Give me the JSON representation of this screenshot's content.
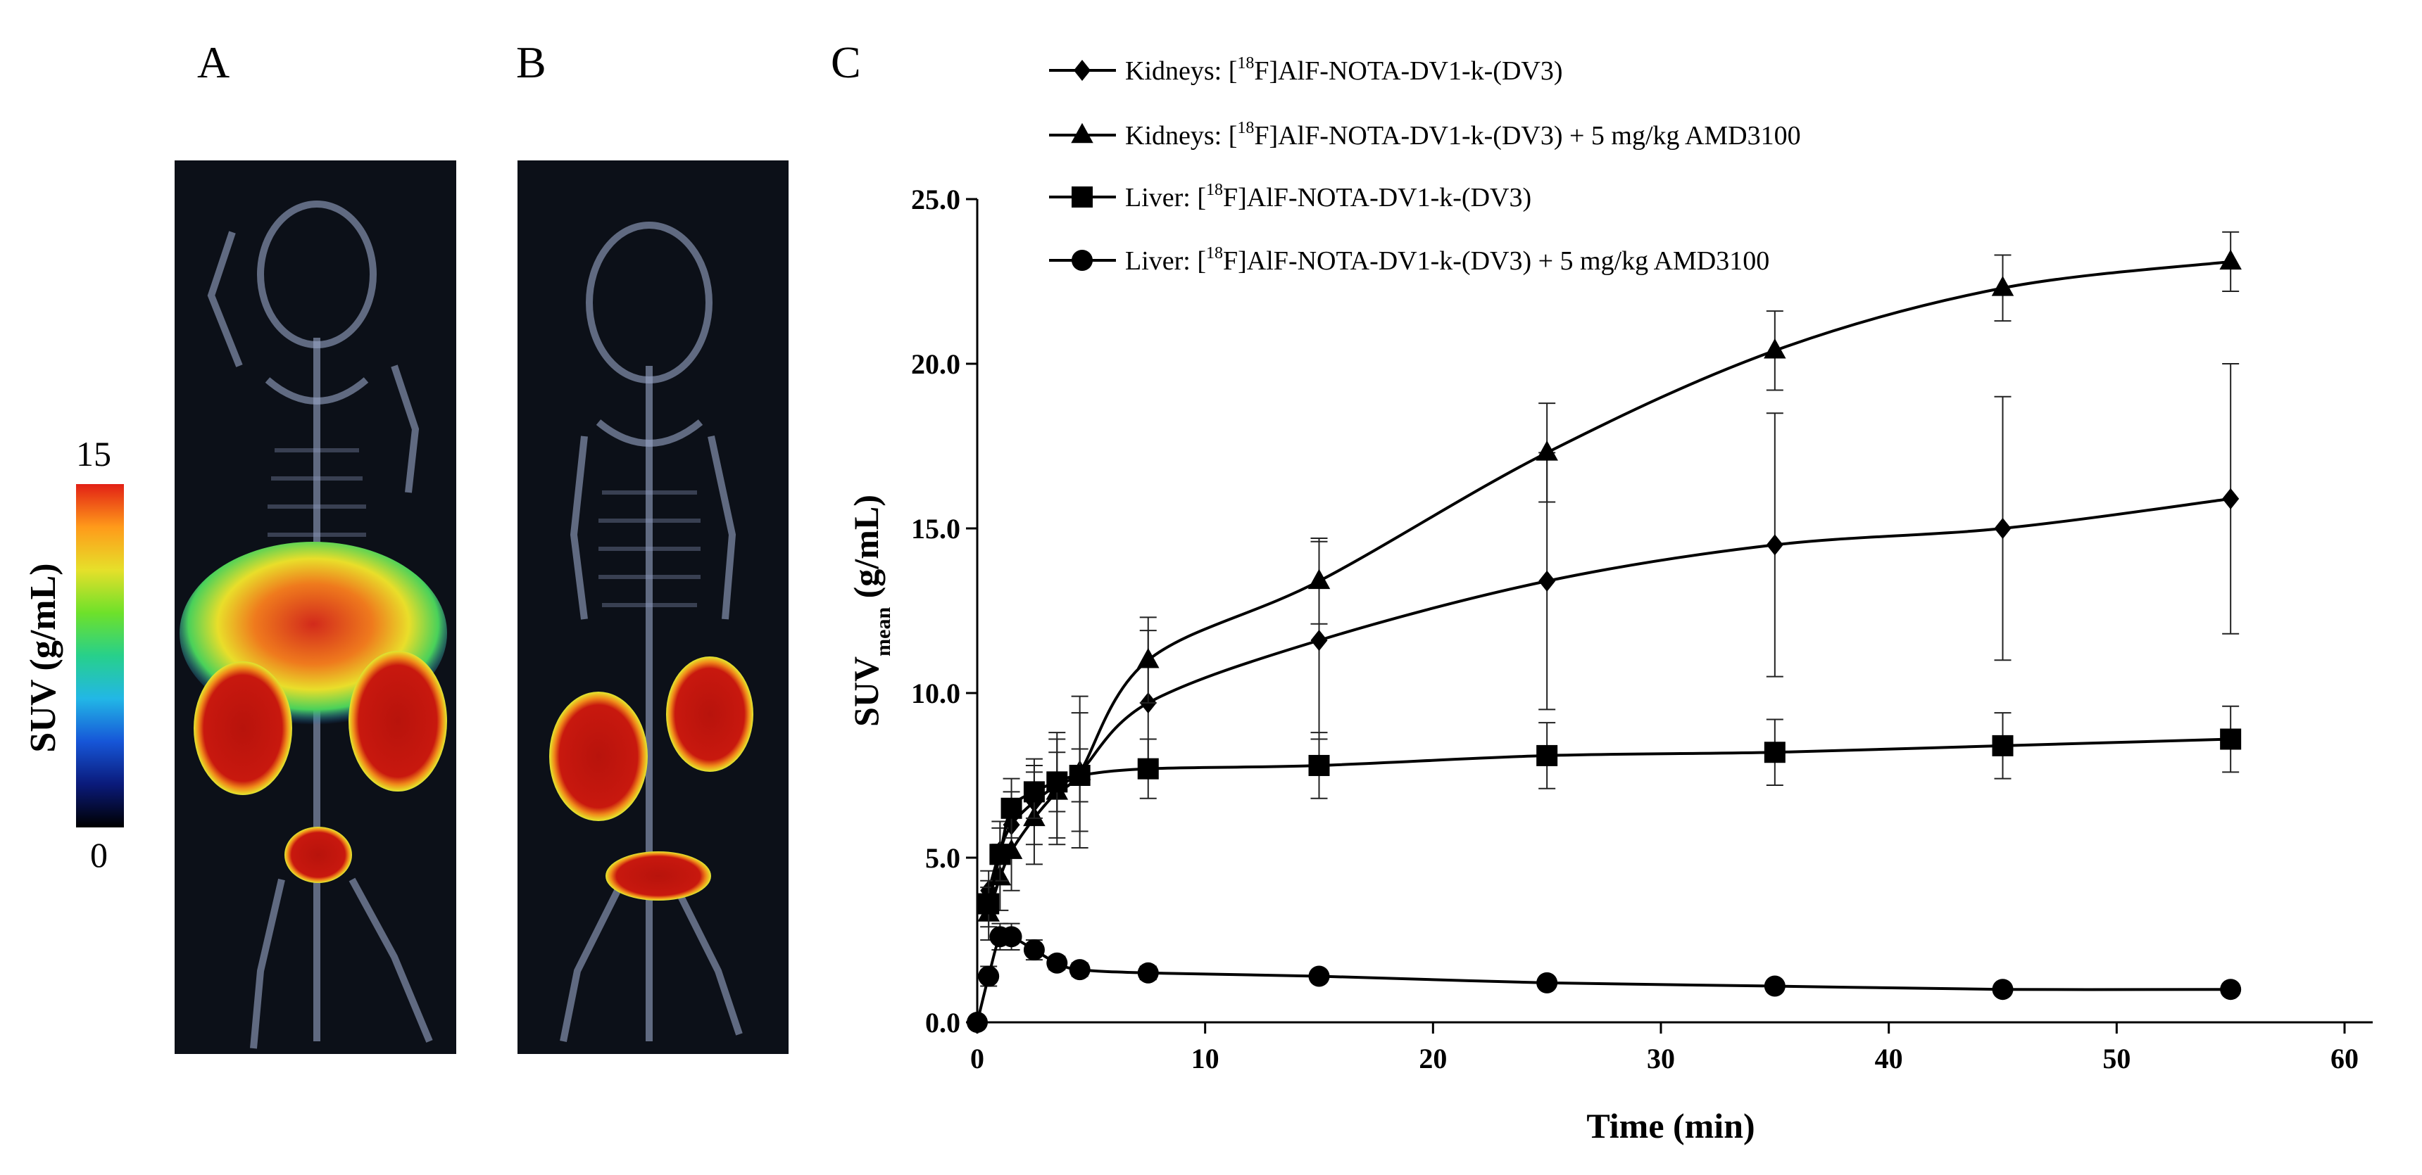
{
  "panels": {
    "a": "A",
    "b": "B",
    "c": "C"
  },
  "colorbar": {
    "max_label": "15",
    "min_label": "0",
    "title": "SUV (g/mL)",
    "colors": [
      "#000000",
      "#0a1a7a",
      "#1656d8",
      "#22b7e6",
      "#27d08b",
      "#6ee12a",
      "#e6e02a",
      "#ff9a1a",
      "#e22015"
    ]
  },
  "images": {
    "a": {
      "description": "PET/CT maximum intensity projection, mouse A"
    },
    "b": {
      "description": "PET/CT maximum intensity projection, mouse B"
    }
  },
  "chart_data": {
    "type": "line",
    "xlabel": "Time (min)",
    "ylabel": "SUV",
    "ylabel_sub": "mean",
    "ylabel_unit": " (g/mL)",
    "xlim": [
      0,
      60
    ],
    "ylim": [
      0,
      25
    ],
    "x_ticks": [
      "0",
      "10",
      "20",
      "30",
      "40",
      "50",
      "60"
    ],
    "y_ticks": [
      "0.0",
      "5.0",
      "10.0",
      "15.0",
      "20.0",
      "25.0"
    ],
    "grid": false,
    "legend_position": "top",
    "series": [
      {
        "id": "kidney",
        "marker": "diamond",
        "legend_prefix": "Kidneys: [",
        "legend_sup": "18",
        "legend_suffix": "F]AlF-NOTA-DV1-k-(DV3)",
        "x": [
          0.5,
          1.0,
          1.5,
          2.5,
          3.5,
          4.5,
          7.5,
          15,
          25,
          35,
          45,
          55
        ],
        "y": [
          4.0,
          5.2,
          6.0,
          6.7,
          7.2,
          7.6,
          9.7,
          11.6,
          13.4,
          14.5,
          15.0,
          15.9
        ],
        "error": [
          0.6,
          0.9,
          1.0,
          1.3,
          1.6,
          1.8,
          2.2,
          3.0,
          3.9,
          4.0,
          4.0,
          4.1
        ]
      },
      {
        "id": "kidney-amd",
        "marker": "triangle",
        "legend_prefix": "Kidneys: [",
        "legend_sup": "18",
        "legend_suffix": "F]AlF-NOTA-DV1-k-(DV3) + 5 mg/kg AMD3100",
        "x": [
          0.5,
          1.0,
          1.5,
          2.5,
          3.5,
          4.5,
          7.5,
          15,
          25,
          35,
          45,
          55
        ],
        "y": [
          3.3,
          4.4,
          5.2,
          6.2,
          7.0,
          7.6,
          11.0,
          13.4,
          17.3,
          20.4,
          22.3,
          23.1
        ],
        "error": [
          0.8,
          1.0,
          1.2,
          1.4,
          1.6,
          2.3,
          1.3,
          1.3,
          1.5,
          1.2,
          1.0,
          0.9
        ]
      },
      {
        "id": "liver",
        "marker": "square",
        "legend_prefix": "Liver:      [",
        "legend_sup": "18",
        "legend_suffix": "F]AlF-NOTA-DV1-k-(DV3)",
        "x": [
          0.5,
          1.0,
          1.5,
          2.5,
          3.5,
          4.5,
          7.5,
          15,
          25,
          35,
          45,
          55
        ],
        "y": [
          3.6,
          5.1,
          6.5,
          7.0,
          7.3,
          7.5,
          7.7,
          7.8,
          8.1,
          8.2,
          8.4,
          8.6
        ],
        "error": [
          0.7,
          0.8,
          0.9,
          0.8,
          0.9,
          0.8,
          0.9,
          1.0,
          1.0,
          1.0,
          1.0,
          1.0
        ]
      },
      {
        "id": "liver-amd",
        "marker": "circle",
        "legend_prefix": "Liver:      [",
        "legend_sup": "18",
        "legend_suffix": "F]AlF-NOTA-DV1-k-(DV3) + 5 mg/kg AMD3100",
        "x": [
          0,
          0.5,
          1.0,
          1.5,
          2.5,
          3.5,
          4.5,
          7.5,
          15,
          25,
          35,
          45,
          55
        ],
        "y": [
          0.0,
          1.4,
          2.6,
          2.6,
          2.2,
          1.8,
          1.6,
          1.5,
          1.4,
          1.2,
          1.1,
          1.0,
          1.0
        ],
        "error": [
          0,
          0.3,
          0.4,
          0.4,
          0.3,
          0.2,
          0.2,
          0.2,
          0.1,
          0.1,
          0.1,
          0.1,
          0.1
        ]
      }
    ]
  }
}
